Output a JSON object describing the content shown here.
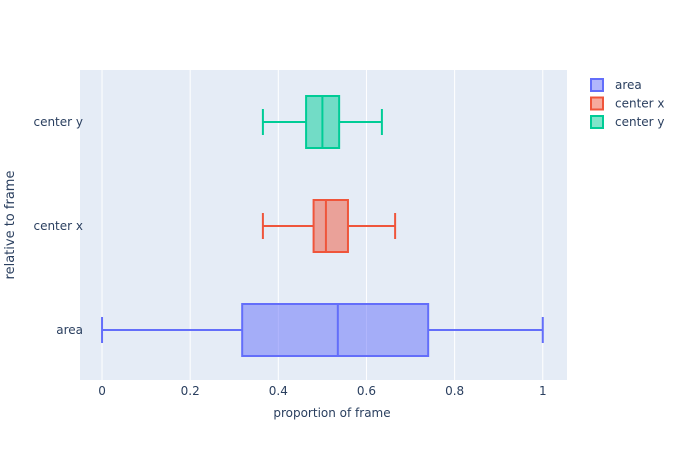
{
  "chart_data": {
    "type": "box",
    "orientation": "horizontal",
    "xlabel": "proportion of frame",
    "ylabel": "relative to frame",
    "xlim": [
      -0.05,
      1.055
    ],
    "x_ticks": [
      0,
      0.2,
      0.4,
      0.6,
      0.8,
      1
    ],
    "x_tick_labels": [
      "0",
      "0.2",
      "0.4",
      "0.6",
      "0.8",
      "1"
    ],
    "categories": [
      "area",
      "center x",
      "center y"
    ],
    "grid": true,
    "legend_position": "top-right",
    "series": [
      {
        "name": "area",
        "color": "#636efa",
        "fill": "rgba(99,110,250,0.5)",
        "min": 0.0,
        "q1": 0.318,
        "median": 0.535,
        "q3": 0.74,
        "max": 1.0
      },
      {
        "name": "center x",
        "color": "#ef553b",
        "fill": "rgba(239,85,59,0.5)",
        "min": 0.365,
        "q1": 0.48,
        "median": 0.508,
        "q3": 0.558,
        "max": 0.665
      },
      {
        "name": "center y",
        "color": "#00cc96",
        "fill": "rgba(0,204,150,0.5)",
        "min": 0.365,
        "q1": 0.463,
        "median": 0.5,
        "q3": 0.538,
        "max": 0.635
      }
    ],
    "colors": {
      "plot_background": "#e5ecf6",
      "grid": "#ffffff",
      "text": "#2a3f5f"
    }
  }
}
